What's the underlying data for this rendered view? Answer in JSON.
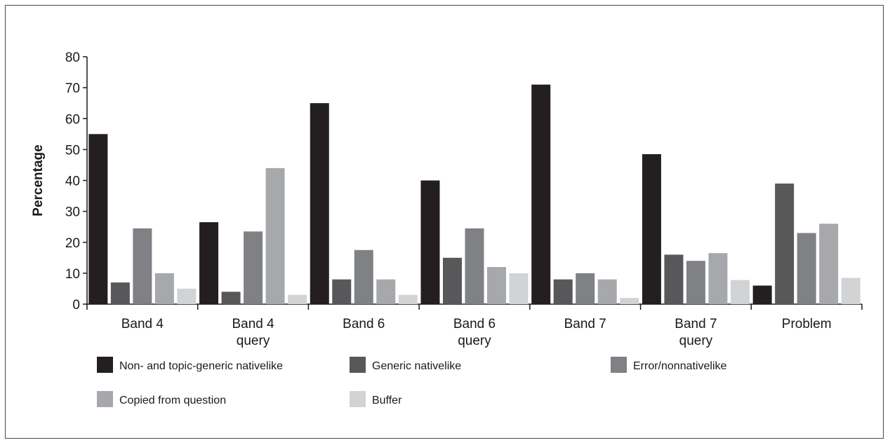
{
  "chart_data": {
    "type": "bar",
    "title": "",
    "xlabel": "",
    "ylabel": "Percentage",
    "ylim": [
      0,
      80
    ],
    "yticks": [
      0,
      10,
      20,
      30,
      40,
      50,
      60,
      70,
      80
    ],
    "grid": false,
    "legend_position": "bottom",
    "categories": [
      [
        "Band 4"
      ],
      [
        "Band 4",
        "query"
      ],
      [
        "Band 6"
      ],
      [
        "Band 6",
        "query"
      ],
      [
        "Band 7"
      ],
      [
        "Band 7",
        "query"
      ],
      [
        "Problem"
      ]
    ],
    "series": [
      {
        "name": "Non- and topic-generic nativelike",
        "color": "#231f20",
        "values": [
          55,
          26.5,
          65,
          40,
          71,
          48.5,
          6
        ]
      },
      {
        "name": "Generic nativelike",
        "color": "#58585a",
        "values": [
          7,
          4,
          8,
          15,
          8,
          16,
          39
        ]
      },
      {
        "name": "Error/nonnativelike",
        "color": "#808184",
        "values": [
          24.5,
          23.5,
          17.5,
          24.5,
          10,
          14,
          23
        ]
      },
      {
        "name": "Copied from question",
        "color": "#a6a8ab",
        "values": [
          10,
          44,
          8,
          12,
          8,
          16.5,
          26
        ]
      },
      {
        "name": "Buffer",
        "color": "#d2d3d5",
        "values": [
          5,
          3,
          3,
          10,
          2,
          7.8,
          8.5
        ]
      }
    ]
  }
}
